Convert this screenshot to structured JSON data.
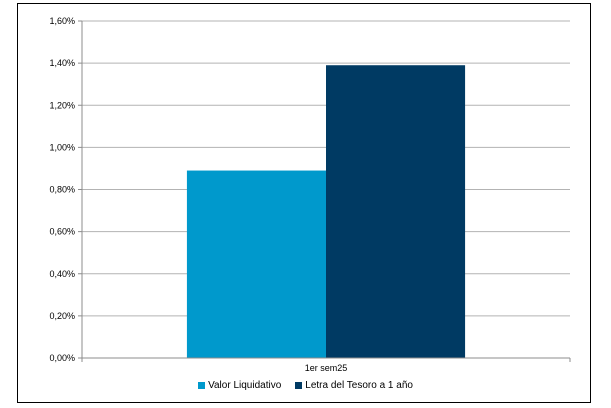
{
  "chart_data": {
    "type": "bar",
    "categories": [
      "1er sem25"
    ],
    "series": [
      {
        "name": "Valor Liquidativo",
        "values": [
          0.89
        ],
        "color": "#0099cc"
      },
      {
        "name": "Letra del Tesoro a 1 año",
        "values": [
          1.39
        ],
        "color": "#003a63"
      }
    ],
    "ylim": [
      0,
      1.6
    ],
    "yticks": [
      0,
      0.2,
      0.4,
      0.6,
      0.8,
      1.0,
      1.2,
      1.4,
      1.6
    ],
    "ytick_labels": [
      "0,00%",
      "0,20%",
      "0,40%",
      "0,60%",
      "0,80%",
      "1,00%",
      "1,20%",
      "1,40%",
      "1,60%"
    ],
    "grid": true,
    "legend_position": "bottom"
  }
}
